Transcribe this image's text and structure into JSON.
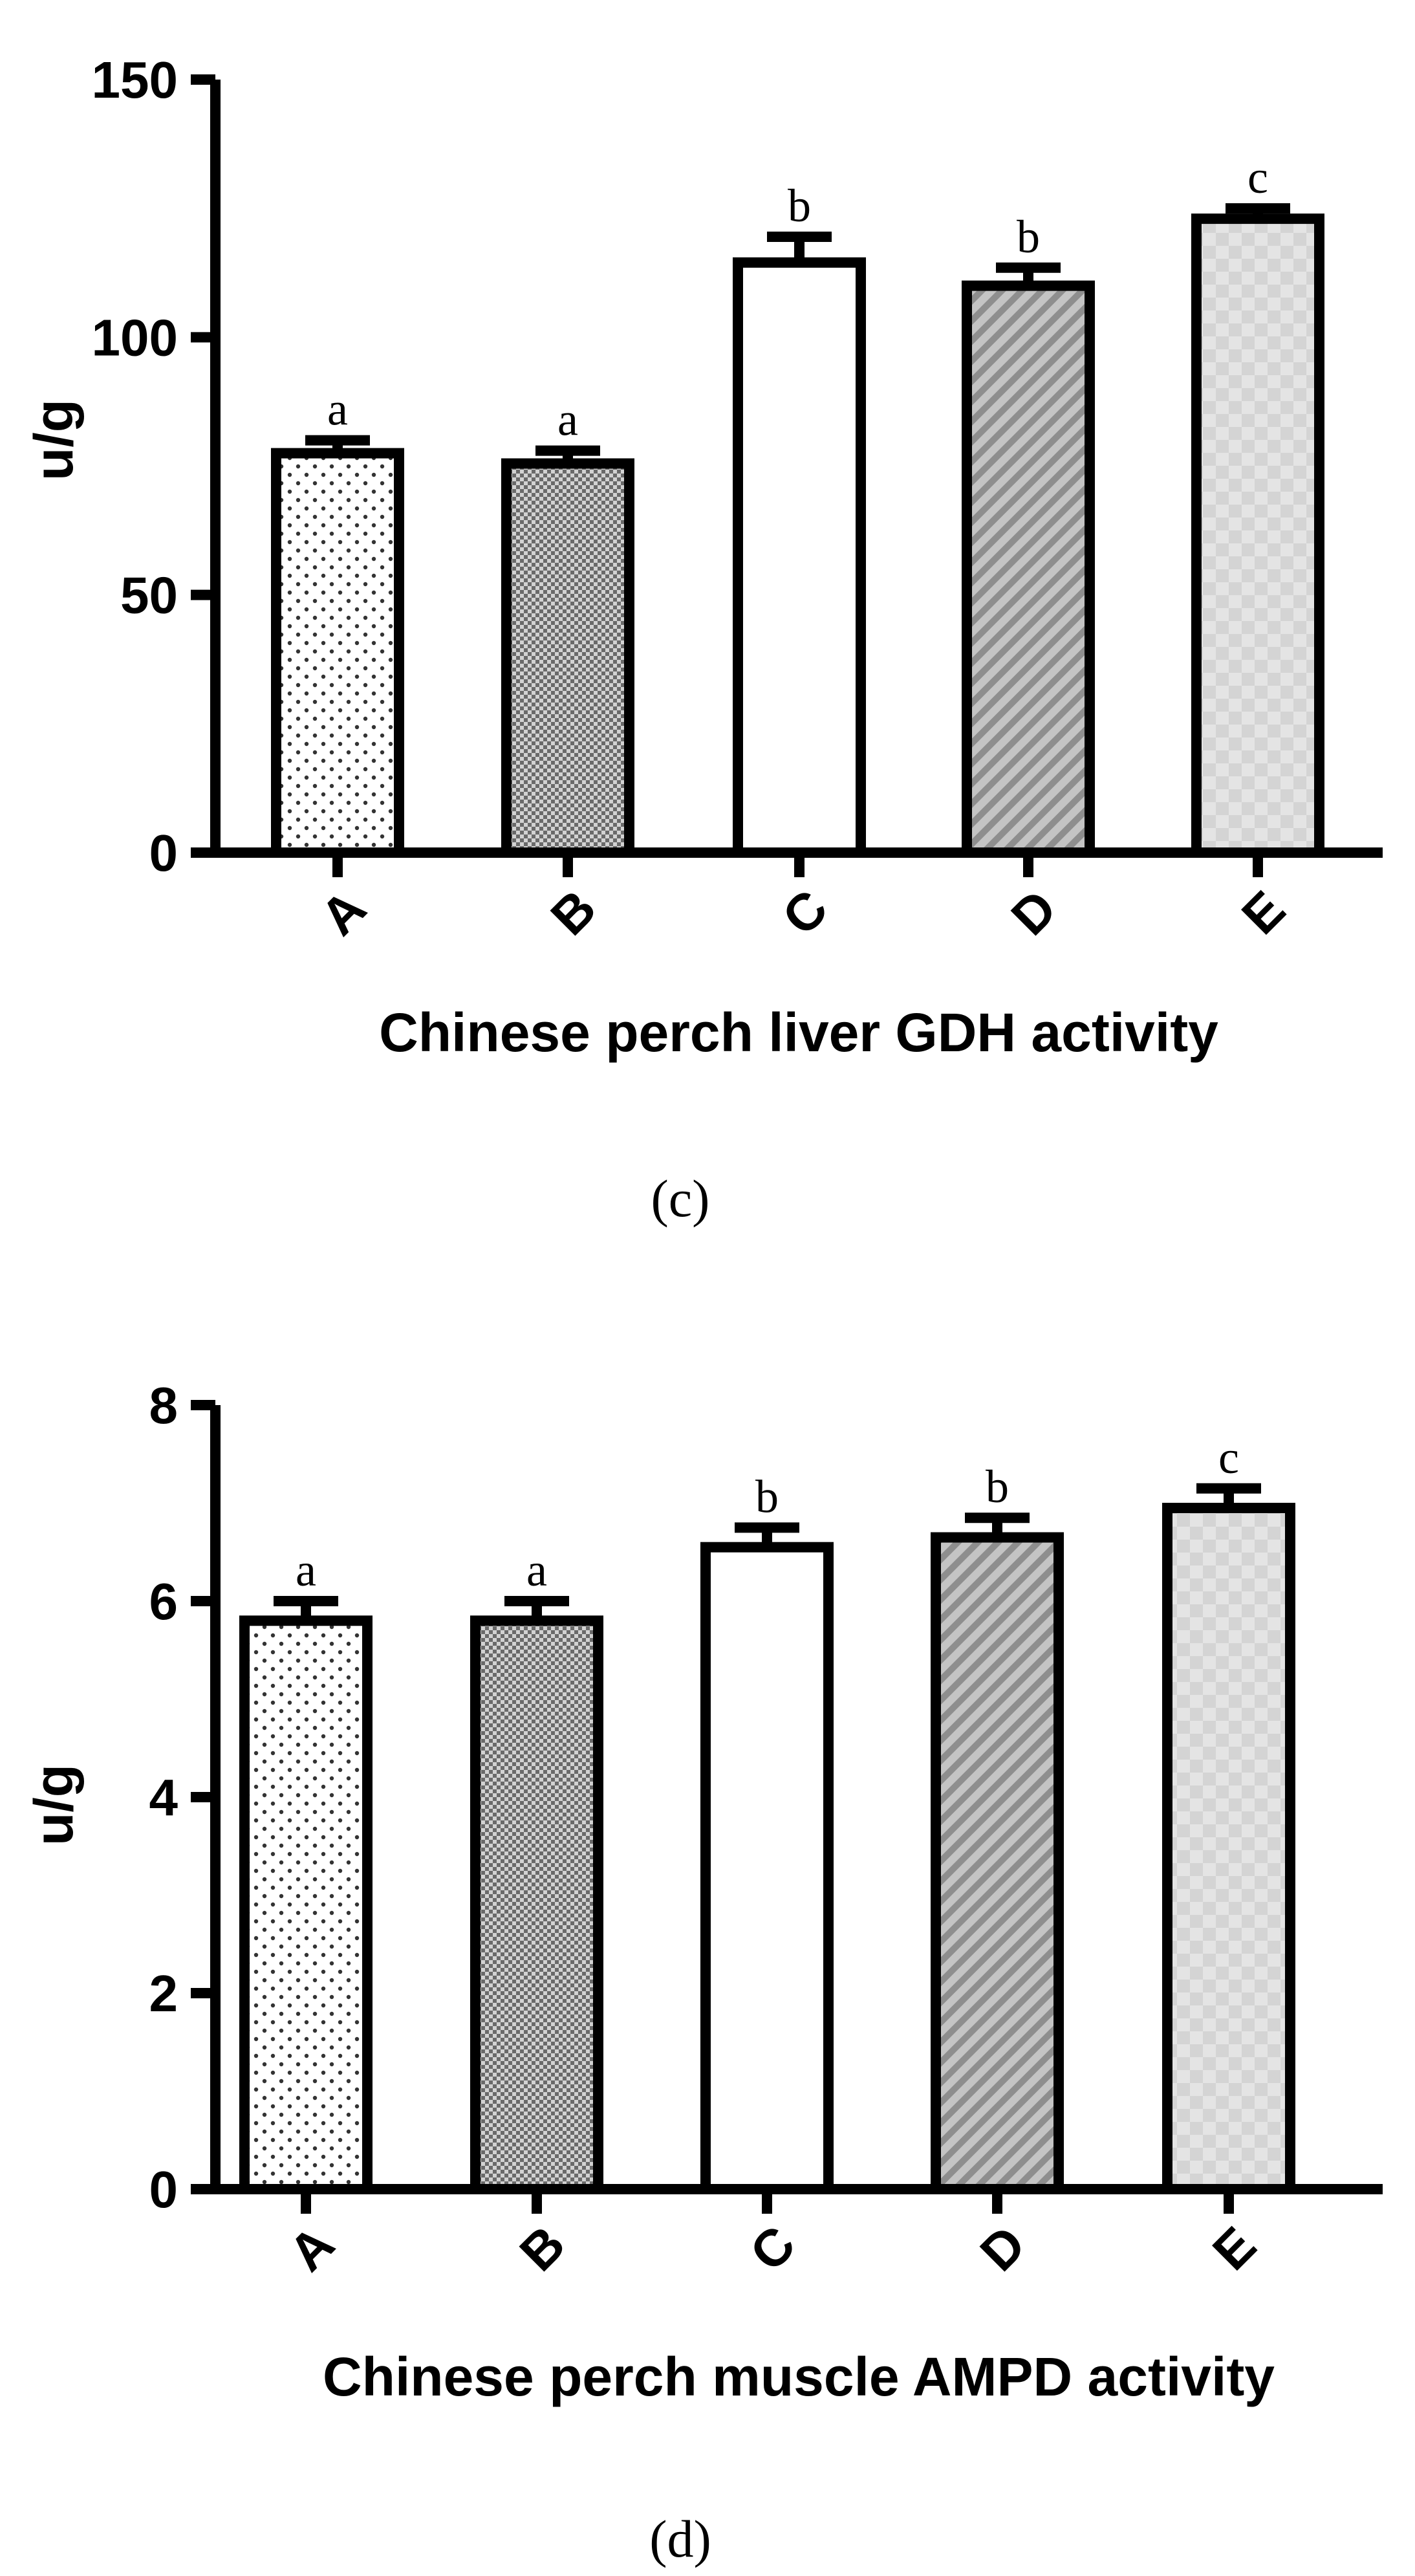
{
  "chart_data": [
    {
      "type": "bar",
      "categories": [
        "A",
        "B",
        "C",
        "D",
        "E"
      ],
      "values": [
        77.5,
        75.5,
        114.5,
        110,
        123
      ],
      "errors": [
        2.5,
        2.5,
        5,
        3.5,
        2
      ],
      "significance": [
        "a",
        "a",
        "b",
        "b",
        "c"
      ],
      "patterns": [
        "dots",
        "checker",
        "none",
        "diagonal",
        "light-checker"
      ],
      "xlabel": "Chinese perch liver GDH activity",
      "ylabel": "u/g",
      "ylim": [
        0,
        150
      ],
      "yticks": [
        0,
        50,
        100,
        150
      ],
      "panel": "(c)",
      "grid": false
    },
    {
      "type": "bar",
      "categories": [
        "A",
        "B",
        "C",
        "D",
        "E"
      ],
      "values": [
        5.8,
        5.8,
        6.55,
        6.65,
        6.95
      ],
      "errors": [
        0.2,
        0.2,
        0.2,
        0.2,
        0.2
      ],
      "significance": [
        "a",
        "a",
        "b",
        "b",
        "c"
      ],
      "patterns": [
        "dots",
        "checker",
        "none",
        "diagonal",
        "light-checker"
      ],
      "xlabel": "Chinese perch muscle AMPD activity",
      "ylabel": "u/g",
      "ylim": [
        0,
        8
      ],
      "yticks": [
        0,
        2,
        4,
        6,
        8
      ],
      "panel": "(d)",
      "grid": false
    }
  ]
}
